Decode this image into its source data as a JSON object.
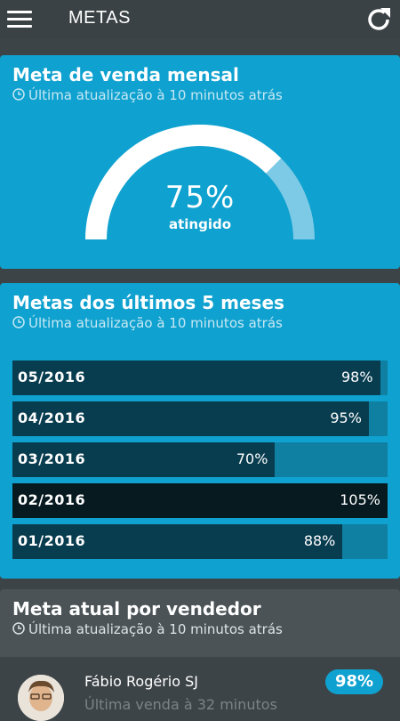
{
  "topbar": {
    "title": "METAS",
    "menu_icon": "hamburger-menu-icon",
    "refresh_icon": "refresh-icon"
  },
  "monthly_goal": {
    "title": "Meta de venda mensal",
    "updated": "Última atualização à 10 minutos atrás",
    "value": "75%",
    "label": "atingido",
    "progress": 0.75
  },
  "last_months": {
    "title": "Metas dos últimos 5 meses",
    "updated": "Última atualização à 10 minutos atrás",
    "rows": [
      {
        "month": "05/2016",
        "pct_label": "98%",
        "pct": 98
      },
      {
        "month": "04/2016",
        "pct_label": "95%",
        "pct": 95
      },
      {
        "month": "03/2016",
        "pct_label": "70%",
        "pct": 70
      },
      {
        "month": "02/2016",
        "pct_label": "105%",
        "pct": 105
      },
      {
        "month": "01/2016",
        "pct_label": "88%",
        "pct": 88
      }
    ]
  },
  "sellers": {
    "title": "Meta atual por vendedor",
    "updated": "Última atualização à 10 minutos atrás",
    "items": [
      {
        "name": "Fábio Rogério SJ",
        "last_sale": "Última venda à 32 minutos",
        "badge": "98%"
      }
    ]
  },
  "colors": {
    "accent": "#0fa1cf",
    "bar_fill": "#083c4f",
    "bar_track": "#0f7fa2",
    "background": "#3d4447"
  }
}
